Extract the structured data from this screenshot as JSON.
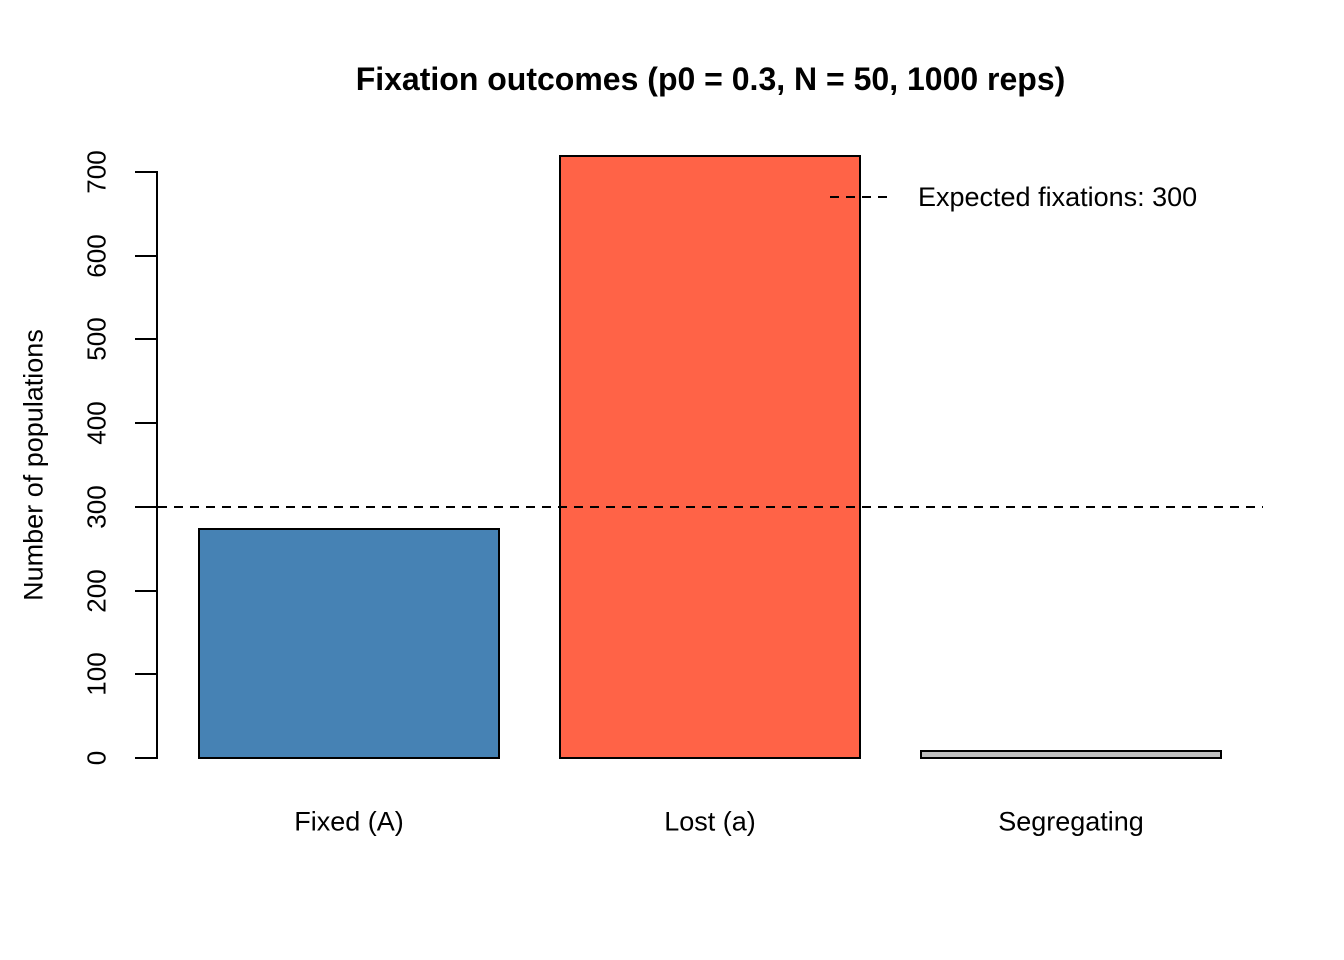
{
  "chart_data": {
    "type": "bar",
    "title": "Fixation outcomes (p0 = 0.3, N = 50, 1000 reps)",
    "xlabel": "",
    "ylabel": "Number of populations",
    "categories": [
      "Fixed (A)",
      "Lost (a)",
      "Segregating"
    ],
    "values": [
      273,
      719,
      8
    ],
    "bar_colors": [
      "#4682B4",
      "#FF6347",
      "#BEBEBE"
    ],
    "bar_border_color": "#000000",
    "ylim": [
      0,
      700
    ],
    "yticks": [
      0,
      100,
      200,
      300,
      400,
      500,
      600,
      700
    ],
    "grid": false,
    "reference_line": {
      "value": 300,
      "style": "dashed",
      "color": "#000000"
    },
    "legend": {
      "label": "Expected fixations: 300",
      "position": "topright",
      "line_style": "dashed"
    }
  }
}
